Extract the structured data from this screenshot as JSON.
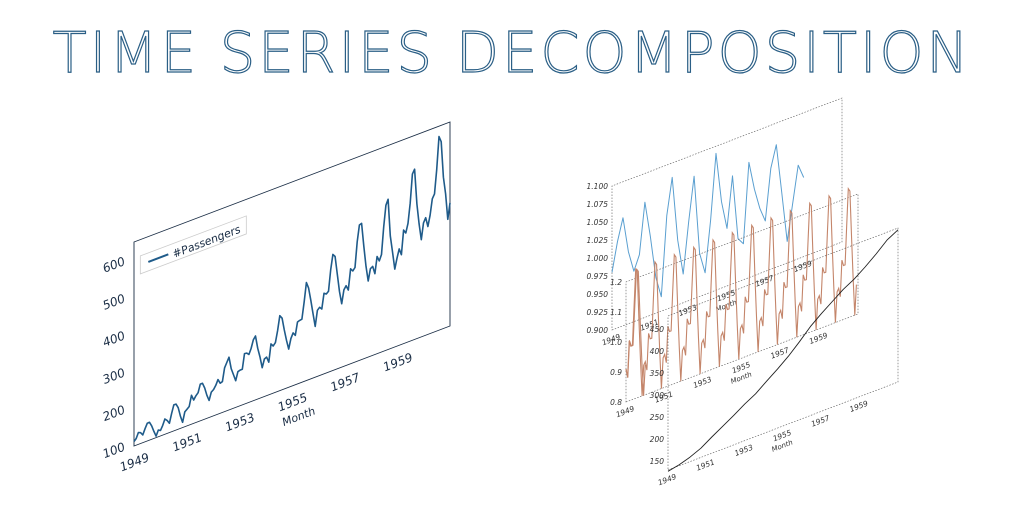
{
  "title": "TIME SERIES DECOMPOSITION",
  "colors": {
    "title": "#2b5f86",
    "main_series": "#1f5b8a",
    "seasonal_series": "#5a9fd0",
    "residual_series": "#c4856a",
    "trend_series": "#222222",
    "frame": "#333333"
  },
  "chart_data": [
    {
      "type": "line",
      "xlabel": "Month",
      "ylabel": "",
      "xlim": [
        1949,
        1961
      ],
      "ylim": [
        100,
        650
      ],
      "x_ticks": [
        "1949",
        "1951",
        "1953",
        "1955",
        "1957",
        "1959"
      ],
      "y_ticks": [
        "100",
        "200",
        "300",
        "400",
        "500",
        "600"
      ],
      "legend": "top-left",
      "series": [
        {
          "name": "#Passengers",
          "values": [
            112,
            118,
            132,
            129,
            121,
            135,
            148,
            148,
            136,
            119,
            104,
            118,
            115,
            126,
            141,
            135,
            125,
            149,
            170,
            170,
            158,
            133,
            114,
            140,
            145,
            150,
            178,
            163,
            172,
            178,
            199,
            199,
            184,
            162,
            146,
            166,
            171,
            180,
            193,
            181,
            183,
            218,
            230,
            242,
            209,
            191,
            172,
            194,
            196,
            196,
            236,
            235,
            229,
            243,
            264,
            272,
            237,
            211,
            180,
            201,
            204,
            188,
            235,
            227,
            234,
            264,
            302,
            293,
            259,
            229,
            203,
            229,
            242,
            233,
            267,
            269,
            270,
            315,
            364,
            347,
            312,
            274,
            237,
            278,
            284,
            277,
            317,
            313,
            318,
            374,
            413,
            405,
            355,
            306,
            271,
            306,
            315,
            301,
            356,
            348,
            355,
            422,
            465,
            467,
            404,
            347,
            305,
            336,
            340,
            318,
            362,
            348,
            363,
            435,
            491,
            505,
            404,
            359,
            310,
            337,
            360,
            342,
            406,
            396,
            420,
            472,
            548,
            559,
            463,
            407,
            362,
            405,
            417,
            391,
            419,
            461,
            472,
            535,
            622,
            606,
            508,
            461,
            390,
            432
          ]
        }
      ]
    },
    {
      "type": "line",
      "xlabel": "Month",
      "ylabel": "",
      "xlim": [
        1949,
        1961
      ],
      "ylim": [
        0.9,
        1.1
      ],
      "x_ticks": [
        "1949",
        "1951",
        "1953",
        "1955",
        "1957",
        "1959"
      ],
      "y_ticks": [
        "0.900",
        "0.925",
        "0.950",
        "0.975",
        "1.000",
        "1.025",
        "1.050",
        "1.075",
        "1.100"
      ],
      "series": [
        {
          "name": "",
          "values": [
            0.98,
            1.02,
            1.05,
            1.0,
            0.97,
            0.99,
            1.06,
            1.01,
            0.95,
            0.92,
            1.03,
            1.08,
            0.99,
            0.94,
            1.01,
            1.07,
            0.96,
            0.93,
            1.0,
            1.09,
            1.02,
            0.98,
            1.05,
            0.96,
            0.95,
            1.06,
            1.02,
            0.99,
            0.97,
            1.04,
            1.07,
            1.0,
            0.93,
            0.98,
            1.03,
            1.01
          ]
        }
      ]
    },
    {
      "type": "line",
      "xlabel": "Month",
      "ylabel": "",
      "xlim": [
        1949,
        1961
      ],
      "ylim": [
        0.8,
        1.2
      ],
      "x_ticks": [
        "1949",
        "1951",
        "1953",
        "1955",
        "1957",
        "1959"
      ],
      "y_ticks": [
        "0.8",
        "0.9",
        "1.0",
        "1.1",
        "1.2"
      ],
      "series": [
        {
          "name": "",
          "values": [
            0.91,
            0.88,
            1.0,
            0.98,
            0.98,
            1.11,
            1.23,
            1.22,
            1.06,
            0.92,
            0.8,
            0.9
          ]
        }
      ]
    },
    {
      "type": "line",
      "xlabel": "Month",
      "ylabel": "",
      "xlim": [
        1949,
        1961
      ],
      "ylim": [
        130,
        480
      ],
      "x_ticks": [
        "1949",
        "1951",
        "1953",
        "1955",
        "1957",
        "1959"
      ],
      "y_ticks": [
        "150",
        "200",
        "250",
        "300",
        "350",
        "400",
        "450"
      ],
      "series": [
        {
          "name": "",
          "values": [
            127,
            132,
            140,
            151,
            167,
            182,
            197,
            213,
            227,
            246,
            264,
            284,
            307,
            332,
            352,
            370,
            388,
            402,
            420,
            440,
            462,
            476
          ]
        }
      ]
    }
  ]
}
